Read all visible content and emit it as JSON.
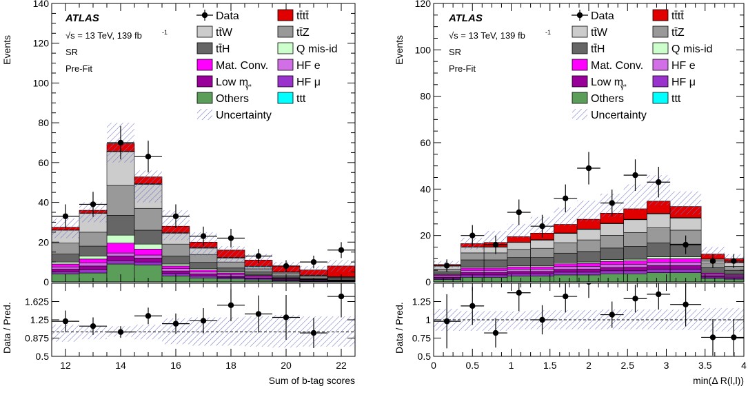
{
  "chart_data": [
    {
      "type": "bar",
      "title": "",
      "xlabel": "Sum of b-tag scores",
      "ylabel": "Events",
      "ratio_ylabel": "Data / Pred.",
      "x_range": [
        11.5,
        22.5
      ],
      "ylim": [
        0,
        140
      ],
      "ratio_ylim": [
        0.5,
        2.0
      ],
      "x_ticks": [
        12,
        14,
        16,
        18,
        20,
        22
      ],
      "y_ticks": [
        0,
        20,
        40,
        60,
        80,
        100,
        120,
        140
      ],
      "ratio_ticks": [
        0.5,
        0.875,
        1.25,
        1.625
      ],
      "ratio_tick_labels": [
        "0.5",
        "0.875",
        "1.25",
        "1.625"
      ],
      "ratio_ref": 1,
      "bin_edges": [
        11.5,
        12.5,
        13.5,
        14.5,
        15.5,
        16.5,
        17.5,
        18.5,
        19.5,
        20.5,
        21.5,
        22.5
      ],
      "stack_series": [
        {
          "name": "Others",
          "color": "#5a9e5a",
          "values": [
            4,
            4.5,
            9,
            8.5,
            3,
            2,
            1.5,
            1,
            0.5,
            0.3,
            0.3
          ]
        },
        {
          "name": "HF μ",
          "color": "#9933cc",
          "values": [
            1,
            1.5,
            1.5,
            1.5,
            1.2,
            1,
            0.8,
            0.6,
            0.4,
            0.3,
            0.2
          ]
        },
        {
          "name": "Low mγ*",
          "color": "#990099",
          "values": [
            1.5,
            2,
            2.5,
            2,
            1.3,
            1,
            0.7,
            0.5,
            0.3,
            0.2,
            0.1
          ]
        },
        {
          "name": "HF e",
          "color": "#d26ee6",
          "values": [
            1,
            1.5,
            1.5,
            1.5,
            1.2,
            1,
            0.8,
            0.6,
            0.4,
            0.3,
            0.2
          ]
        },
        {
          "name": "Mat. Conv.",
          "color": "#ff00ff",
          "values": [
            1.5,
            2,
            5,
            3,
            1.3,
            1,
            0.7,
            0.5,
            0.3,
            0.2,
            0.1
          ]
        },
        {
          "name": "Q mis-id",
          "color": "#ccffcc",
          "values": [
            1,
            1.5,
            4,
            2.5,
            1,
            0.8,
            0.5,
            0.3,
            0.2,
            0.1,
            0.1
          ]
        },
        {
          "name": "tt̄H",
          "color": "#666666",
          "values": [
            4,
            5,
            10,
            7,
            4,
            3,
            2,
            1.5,
            1,
            0.6,
            0.5
          ]
        },
        {
          "name": "tt̄Z",
          "color": "#999999",
          "values": [
            5.5,
            7,
            15,
            11,
            6,
            4,
            3,
            1.6,
            1.1,
            0.8,
            0.6
          ]
        },
        {
          "name": "tt̄W",
          "color": "#cccccc",
          "values": [
            6.5,
            9.5,
            17,
            12,
            5.5,
            3.2,
            2,
            1,
            0.6,
            0.4,
            0.3
          ]
        },
        {
          "name": "ttt",
          "color": "#00ffff",
          "values": [
            0.1,
            0.1,
            0.2,
            0.3,
            0.3,
            0.3,
            0.3,
            0.3,
            0.2,
            0.2,
            0.2
          ]
        },
        {
          "name": "tt̄tt̄",
          "color": "#e00000",
          "values": [
            1.4,
            1.4,
            3.8,
            3.5,
            3.2,
            2.7,
            3.7,
            3.1,
            3.0,
            2.6,
            5.4
          ]
        }
      ],
      "uncertainty_band": [
        [
          22,
          32
        ],
        [
          30,
          40
        ],
        [
          60,
          80
        ],
        [
          40,
          56
        ],
        [
          21,
          36
        ],
        [
          13,
          25
        ],
        [
          10,
          18
        ],
        [
          6,
          14
        ],
        [
          5,
          10
        ],
        [
          3,
          8
        ],
        [
          5,
          11
        ]
      ],
      "data_points": {
        "x": [
          12,
          13,
          14,
          15,
          16,
          17,
          18,
          19,
          20,
          21,
          22
        ],
        "y": [
          33,
          39,
          70,
          63,
          33,
          23,
          22,
          13,
          8,
          10,
          16
        ],
        "yerr": [
          6,
          6.3,
          8.4,
          8,
          6,
          4.8,
          4.7,
          3.6,
          2.9,
          3.2,
          4
        ]
      },
      "ratio_points": {
        "x": [
          12,
          13,
          14,
          15,
          16,
          17,
          18,
          19,
          20,
          21,
          22
        ],
        "y": [
          1.22,
          1.12,
          1.0,
          1.33,
          1.17,
          1.23,
          1.55,
          1.37,
          1.3,
          0.98,
          1.73
        ],
        "yerr": [
          0.22,
          0.18,
          0.12,
          0.17,
          0.21,
          0.26,
          0.33,
          0.38,
          0.46,
          0.31,
          0.43
        ]
      },
      "ratio_band": [
        [
          0.8,
          1.15
        ],
        [
          0.85,
          1.12
        ],
        [
          0.9,
          1.12
        ],
        [
          0.85,
          1.15
        ],
        [
          0.75,
          1.28
        ],
        [
          0.72,
          1.3
        ],
        [
          0.72,
          1.3
        ],
        [
          0.7,
          1.32
        ],
        [
          0.68,
          1.35
        ],
        [
          0.7,
          1.32
        ],
        [
          0.7,
          1.32
        ]
      ]
    },
    {
      "type": "bar",
      "title": "",
      "xlabel": "min(Δ R(l,l))",
      "ylabel": "Events",
      "ratio_ylabel": "Data / Pred.",
      "x_range": [
        0,
        4
      ],
      "ylim": [
        0,
        120
      ],
      "ratio_ylim": [
        0.5,
        1.5
      ],
      "x_ticks": [
        0,
        0.5,
        1,
        1.5,
        2,
        2.5,
        3,
        3.5,
        4
      ],
      "y_ticks": [
        0,
        20,
        40,
        60,
        80,
        100,
        120
      ],
      "ratio_ticks": [
        0.5,
        0.75,
        1,
        1.25
      ],
      "ratio_tick_labels": [
        "0.5",
        "0.75",
        "1",
        "1.25"
      ],
      "ratio_ref": 1,
      "bin_edges": [
        0,
        0.35,
        0.65,
        0.95,
        1.25,
        1.55,
        1.85,
        2.15,
        2.45,
        2.75,
        3.05,
        3.45,
        3.75,
        4
      ],
      "stack_series": [
        {
          "name": "Others",
          "color": "#5a9e5a",
          "values": [
            1,
            2,
            2,
            2.5,
            2.5,
            3,
            3,
            3.5,
            3.5,
            4,
            4,
            1.5,
            1.2
          ]
        },
        {
          "name": "HF μ",
          "color": "#9933cc",
          "values": [
            0.5,
            1,
            1,
            1,
            1,
            1.2,
            1.2,
            1.3,
            1.3,
            1.4,
            1.4,
            0.6,
            0.5
          ]
        },
        {
          "name": "Low mγ*",
          "color": "#990099",
          "values": [
            0.5,
            1,
            1,
            1,
            1,
            1.2,
            1.3,
            1.4,
            1.5,
            1.6,
            1.6,
            0.6,
            0.5
          ]
        },
        {
          "name": "HF e",
          "color": "#d26ee6",
          "values": [
            0.5,
            1,
            1,
            1,
            1,
            1.2,
            1.2,
            1.3,
            1.3,
            1.4,
            1.4,
            0.6,
            0.5
          ]
        },
        {
          "name": "Mat. Conv.",
          "color": "#ff00ff",
          "values": [
            0.5,
            1,
            1,
            1,
            1,
            1.2,
            1.3,
            1.4,
            1.5,
            1.6,
            1.6,
            0.5,
            0.4
          ]
        },
        {
          "name": "Q mis-id",
          "color": "#ccffcc",
          "values": [
            0.3,
            0.5,
            0.5,
            0.5,
            0.5,
            0.6,
            0.6,
            0.7,
            0.7,
            0.8,
            0.8,
            0.3,
            0.3
          ]
        },
        {
          "name": "tt̄H",
          "color": "#666666",
          "values": [
            1,
            3,
            3,
            3.5,
            3.5,
            4,
            4.5,
            5,
            5.5,
            6,
            5.5,
            2,
            1.6
          ]
        },
        {
          "name": "tt̄Z",
          "color": "#999999",
          "values": [
            1.2,
            3,
            3,
            3.5,
            4,
            4.5,
            5,
            5.5,
            6,
            6.5,
            6,
            2,
            1.7
          ]
        },
        {
          "name": "tt̄W",
          "color": "#cccccc",
          "values": [
            1.3,
            2.5,
            2.5,
            3,
            3.5,
            4,
            4.5,
            5,
            5.5,
            6,
            5.2,
            1.7,
            1.6
          ]
        },
        {
          "name": "ttt",
          "color": "#00ffff",
          "values": [
            0.1,
            0.1,
            0.1,
            0.1,
            0.2,
            0.2,
            0.2,
            0.2,
            0.2,
            0.2,
            0.2,
            0.1,
            0.1
          ]
        },
        {
          "name": "tt̄tt̄",
          "color": "#e00000",
          "values": [
            0.6,
            1.4,
            1.9,
            2.4,
            2.8,
            3.7,
            4.2,
            4.3,
            4.5,
            5.3,
            4.8,
            2.1,
            1.6
          ]
        }
      ],
      "uncertainty_band": [
        [
          6,
          9
        ],
        [
          14,
          19
        ],
        [
          16,
          22
        ],
        [
          19,
          25
        ],
        [
          21,
          28
        ],
        [
          24,
          32
        ],
        [
          26,
          35
        ],
        [
          28,
          38
        ],
        [
          31,
          42
        ],
        [
          33,
          46
        ],
        [
          29,
          39
        ],
        [
          11,
          15
        ],
        [
          8,
          12
        ]
      ],
      "data_points": {
        "x": [
          0.17,
          0.5,
          0.8,
          1.1,
          1.4,
          1.7,
          2.0,
          2.3,
          2.6,
          2.9,
          3.25,
          3.6,
          3.87
        ],
        "y": [
          7,
          20,
          16,
          30,
          24,
          36,
          49,
          34,
          46,
          43,
          16,
          9,
          9
        ],
        "yerr": [
          2.7,
          4.5,
          4,
          5.5,
          4.9,
          6,
          7,
          5.8,
          6.8,
          6.6,
          4,
          3,
          3
        ]
      },
      "ratio_points": {
        "x": [
          0.17,
          0.5,
          0.8,
          1.1,
          1.4,
          1.7,
          2.0,
          2.3,
          2.6,
          2.9,
          3.25,
          3.6,
          3.87
        ],
        "y": [
          0.98,
          1.19,
          0.82,
          1.37,
          1.0,
          1.32,
          1.52,
          1.07,
          1.29,
          1.35,
          1.21,
          0.76,
          0.76
        ],
        "yerr": [
          0.37,
          0.26,
          0.2,
          0.25,
          0.2,
          0.22,
          0.22,
          0.18,
          0.19,
          0.21,
          0.3,
          0.25,
          0.25
        ]
      },
      "ratio_band": [
        [
          0.85,
          1.15
        ],
        [
          0.85,
          1.12
        ],
        [
          0.85,
          1.12
        ],
        [
          0.87,
          1.12
        ],
        [
          0.87,
          1.13
        ],
        [
          0.87,
          1.13
        ],
        [
          0.87,
          1.13
        ],
        [
          0.87,
          1.14
        ],
        [
          0.87,
          1.14
        ],
        [
          0.87,
          1.14
        ],
        [
          0.86,
          1.14
        ],
        [
          0.84,
          1.16
        ],
        [
          0.84,
          1.16
        ]
      ]
    }
  ],
  "panel_text": {
    "experiment": "ATLAS",
    "energy": "√s = 13 TeV, 139 fb",
    "energy_sup": "-1",
    "region": "SR",
    "fit_stage": "Pre-Fit"
  },
  "legend": [
    {
      "label": "Data",
      "kind": "data"
    },
    {
      "label": "tt̄tt̄",
      "kind": "box",
      "color": "#e00000"
    },
    {
      "label": "tt̄W",
      "kind": "box",
      "color": "#cccccc"
    },
    {
      "label": "tt̄Z",
      "kind": "box",
      "color": "#999999"
    },
    {
      "label": "tt̄H",
      "kind": "box",
      "color": "#666666"
    },
    {
      "label": "Q mis-id",
      "kind": "box",
      "color": "#ccffcc"
    },
    {
      "label": "Mat. Conv.",
      "kind": "box",
      "color": "#ff00ff"
    },
    {
      "label": "HF e",
      "kind": "box",
      "color": "#d26ee6"
    },
    {
      "label": "Low m",
      "sub": "γ*",
      "kind": "box",
      "color": "#990099"
    },
    {
      "label": "HF μ",
      "kind": "box",
      "color": "#9933cc"
    },
    {
      "label": "Others",
      "kind": "box",
      "color": "#5a9e5a"
    },
    {
      "label": "ttt",
      "kind": "box",
      "color": "#00ffff"
    },
    {
      "label": "Uncertainty",
      "kind": "hatch"
    }
  ]
}
